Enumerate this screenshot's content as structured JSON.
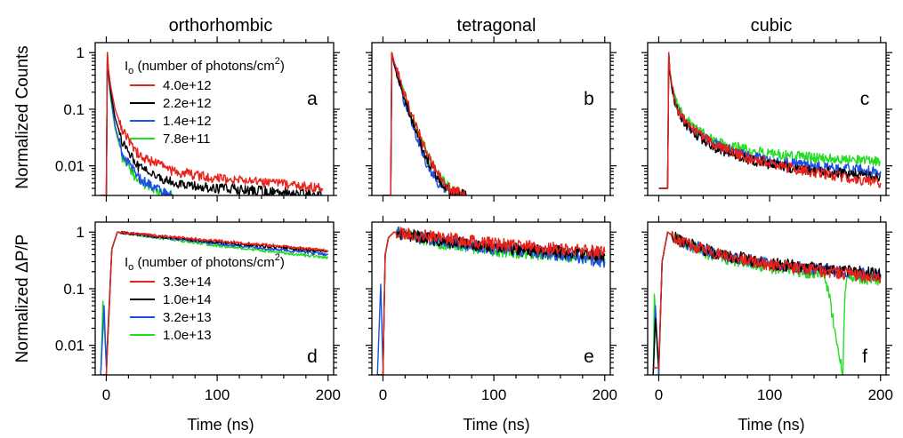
{
  "figure": {
    "column_titles": [
      "orthorhombic",
      "tetragonal",
      "cubic"
    ],
    "ylabel_top": "Normalized Counts",
    "ylabel_bottom": "Normalized  ΔP/P",
    "xlabel": "Time (ns)",
    "colors": {
      "red": "#e8211b",
      "black": "#000000",
      "blue": "#1f4fe0",
      "green": "#22dd22"
    }
  },
  "legends": {
    "top": {
      "title_prefix": "I",
      "title_sub": "o",
      "title_main": " (number of photons/cm",
      "title_sup": "2",
      "title_end": ")",
      "entries": [
        {
          "label": "4.0e+12",
          "color": "#e8211b"
        },
        {
          "label": "2.2e+12",
          "color": "#000000"
        },
        {
          "label": "1.4e+12",
          "color": "#1f4fe0"
        },
        {
          "label": "7.8e+11",
          "color": "#22dd22"
        }
      ]
    },
    "bottom": {
      "title_prefix": "I",
      "title_sub": "o",
      "title_main": " (number of photons/cm",
      "title_sup": "2",
      "title_end": ")",
      "entries": [
        {
          "label": "3.3e+14",
          "color": "#e8211b"
        },
        {
          "label": "1.0e+14",
          "color": "#000000"
        },
        {
          "label": "3.2e+13",
          "color": "#1f4fe0"
        },
        {
          "label": "1.0e+13",
          "color": "#22dd22"
        }
      ]
    }
  },
  "chart_data": [
    {
      "panel": "a",
      "type": "line",
      "yscale": "log",
      "ylim": [
        0.003,
        1.5
      ],
      "xlim": [
        -10,
        205
      ],
      "xticks": [
        0,
        100,
        200
      ],
      "yticks": [
        1,
        0.1,
        0.01
      ],
      "ytick_labels": [
        "1",
        "0.1",
        "0.01"
      ],
      "series": [
        {
          "name": "4.0e+12",
          "color": "#e8211b",
          "x": [
            -5,
            0,
            1,
            2,
            4,
            8,
            15,
            30,
            60,
            100,
            150,
            195
          ],
          "y": [
            0.003,
            0.003,
            1,
            0.5,
            0.25,
            0.1,
            0.04,
            0.015,
            0.008,
            0.006,
            0.005,
            0.004
          ]
        },
        {
          "name": "2.2e+12",
          "color": "#000000",
          "x": [
            -5,
            0,
            1,
            2,
            4,
            8,
            15,
            30,
            60,
            100,
            150,
            195
          ],
          "y": [
            0.003,
            0.003,
            1,
            0.45,
            0.2,
            0.07,
            0.025,
            0.009,
            0.005,
            0.004,
            0.0035,
            0.003
          ]
        },
        {
          "name": "1.4e+12",
          "color": "#1f4fe0",
          "x": [
            -5,
            0,
            1,
            2,
            4,
            8,
            15,
            30,
            45,
            60
          ],
          "y": [
            0.003,
            0.003,
            1,
            0.42,
            0.17,
            0.05,
            0.015,
            0.006,
            0.004,
            0.003
          ]
        },
        {
          "name": "7.8e+11",
          "color": "#22dd22",
          "x": [
            -5,
            0,
            1,
            2,
            4,
            8,
            15,
            30,
            45,
            60
          ],
          "y": [
            0.003,
            0.003,
            1,
            0.4,
            0.15,
            0.045,
            0.013,
            0.005,
            0.0035,
            0.003
          ]
        }
      ]
    },
    {
      "panel": "b",
      "type": "line",
      "yscale": "log",
      "ylim": [
        0.003,
        1.5
      ],
      "xlim": [
        -10,
        205
      ],
      "xticks": [
        0,
        100,
        200
      ],
      "yticks": [
        1,
        0.1,
        0.01
      ],
      "ytick_labels": [
        "",
        "",
        ""
      ],
      "series": [
        {
          "name": "4.0e+12",
          "color": "#e8211b",
          "x": [
            0,
            7,
            8,
            10,
            15,
            20,
            30,
            40,
            50,
            60,
            75
          ],
          "y": [
            0.003,
            0.003,
            1,
            0.7,
            0.35,
            0.17,
            0.05,
            0.016,
            0.007,
            0.004,
            0.003
          ]
        },
        {
          "name": "2.2e+12",
          "color": "#000000",
          "x": [
            0,
            7,
            8,
            10,
            15,
            20,
            30,
            40,
            50,
            60,
            75
          ],
          "y": [
            0.003,
            0.003,
            1,
            0.65,
            0.3,
            0.14,
            0.04,
            0.013,
            0.006,
            0.0035,
            0.003
          ]
        },
        {
          "name": "1.4e+12",
          "color": "#1f4fe0",
          "x": [
            0,
            7,
            8,
            10,
            15,
            20,
            30,
            40,
            50,
            60,
            70
          ],
          "y": [
            0.003,
            0.003,
            1,
            0.6,
            0.28,
            0.12,
            0.035,
            0.01,
            0.005,
            0.0035,
            0.003
          ]
        },
        {
          "name": "7.8e+11",
          "color": "#22dd22",
          "x": [
            0,
            7,
            8,
            10,
            15,
            20,
            30,
            40,
            50,
            60,
            75
          ],
          "y": [
            0.003,
            0.003,
            1,
            0.68,
            0.33,
            0.16,
            0.05,
            0.016,
            0.007,
            0.004,
            0.003
          ]
        }
      ]
    },
    {
      "panel": "c",
      "type": "line",
      "yscale": "log",
      "ylim": [
        0.003,
        1.5
      ],
      "xlim": [
        -10,
        205
      ],
      "xticks": [
        0,
        100,
        200
      ],
      "yticks": [
        1,
        0.1,
        0.01
      ],
      "ytick_labels": [
        "",
        "",
        ""
      ],
      "series": [
        {
          "name": "4.0e+12",
          "color": "#e8211b",
          "x": [
            0,
            8,
            9,
            10,
            12,
            15,
            20,
            30,
            50,
            80,
            120,
            160,
            200
          ],
          "y": [
            0.004,
            0.004,
            1,
            0.5,
            0.25,
            0.14,
            0.08,
            0.045,
            0.024,
            0.014,
            0.009,
            0.0065,
            0.005
          ]
        },
        {
          "name": "2.2e+12",
          "color": "#000000",
          "x": [
            0,
            8,
            9,
            10,
            12,
            15,
            20,
            30,
            50,
            80,
            120,
            160,
            200
          ],
          "y": [
            0.004,
            0.004,
            1,
            0.45,
            0.22,
            0.12,
            0.07,
            0.04,
            0.021,
            0.013,
            0.009,
            0.0075,
            0.0065
          ]
        },
        {
          "name": "1.4e+12",
          "color": "#1f4fe0",
          "x": [
            0,
            8,
            9,
            10,
            12,
            15,
            20,
            30,
            50,
            80,
            120,
            160,
            200
          ],
          "y": [
            0.004,
            0.004,
            1,
            0.45,
            0.23,
            0.13,
            0.075,
            0.043,
            0.024,
            0.015,
            0.011,
            0.009,
            0.008
          ]
        },
        {
          "name": "7.8e+11",
          "color": "#22dd22",
          "x": [
            0,
            8,
            9,
            10,
            12,
            15,
            20,
            30,
            50,
            80,
            120,
            160,
            200
          ],
          "y": [
            0.004,
            0.004,
            1,
            0.48,
            0.25,
            0.15,
            0.09,
            0.05,
            0.028,
            0.019,
            0.015,
            0.013,
            0.012
          ]
        }
      ]
    },
    {
      "panel": "d",
      "type": "line",
      "yscale": "log",
      "ylim": [
        0.003,
        1.5
      ],
      "xlim": [
        -10,
        205
      ],
      "xticks": [
        0,
        100,
        200
      ],
      "xtick_labels": [
        "0",
        "100",
        "200"
      ],
      "yticks": [
        1,
        0.1,
        0.01
      ],
      "ytick_labels": [
        "1",
        "0.1",
        "0.01"
      ],
      "series": [
        {
          "name": "3.3e+14",
          "color": "#e8211b",
          "x": [
            -5,
            0,
            5,
            10,
            50,
            100,
            150,
            200
          ],
          "y": [
            0.003,
            0.003,
            0.5,
            1,
            0.85,
            0.7,
            0.58,
            0.47
          ]
        },
        {
          "name": "1.0e+14",
          "color": "#000000",
          "x": [
            -5,
            0,
            5,
            10,
            50,
            100,
            150,
            200
          ],
          "y": [
            0.003,
            0.003,
            0.5,
            1,
            0.82,
            0.66,
            0.55,
            0.45
          ]
        },
        {
          "name": "3.2e+13",
          "color": "#1f4fe0",
          "x": [
            -5,
            -2,
            0,
            5,
            10,
            50,
            100,
            150,
            200
          ],
          "y": [
            0.003,
            0.05,
            0.004,
            0.5,
            1,
            0.8,
            0.62,
            0.5,
            0.4
          ]
        },
        {
          "name": "1.0e+13",
          "color": "#22dd22",
          "x": [
            -5,
            -3,
            0,
            5,
            10,
            50,
            100,
            150,
            200
          ],
          "y": [
            0.003,
            0.06,
            0.005,
            0.5,
            1,
            0.78,
            0.58,
            0.45,
            0.35
          ]
        }
      ]
    },
    {
      "panel": "e",
      "type": "line",
      "yscale": "log",
      "ylim": [
        0.003,
        1.5
      ],
      "xlim": [
        -10,
        205
      ],
      "xticks": [
        0,
        100,
        200
      ],
      "xtick_labels": [
        "0",
        "100",
        "200"
      ],
      "yticks": [
        1,
        0.1,
        0.01
      ],
      "ytick_labels": [
        "",
        "",
        ""
      ],
      "series": [
        {
          "name": "3.3e+14",
          "color": "#e8211b",
          "x": [
            -5,
            0,
            2,
            5,
            10,
            50,
            100,
            150,
            200
          ],
          "y": [
            0.003,
            0.003,
            0.4,
            0.8,
            1,
            0.8,
            0.62,
            0.52,
            0.44
          ]
        },
        {
          "name": "1.0e+14",
          "color": "#000000",
          "x": [
            -5,
            0,
            2,
            5,
            10,
            50,
            100,
            150,
            200
          ],
          "y": [
            0.003,
            0.003,
            0.4,
            0.8,
            1,
            0.72,
            0.55,
            0.46,
            0.38
          ]
        },
        {
          "name": "3.2e+13",
          "color": "#1f4fe0",
          "x": [
            -5,
            -2,
            0,
            2,
            5,
            10,
            50,
            100,
            150,
            200
          ],
          "y": [
            0.003,
            0.12,
            0.004,
            0.4,
            0.8,
            1,
            0.7,
            0.52,
            0.42,
            0.3
          ]
        },
        {
          "name": "1.0e+13",
          "color": "#22dd22",
          "x": [
            -5,
            0,
            2,
            5,
            10,
            50,
            100,
            150,
            200
          ],
          "y": [
            0.003,
            0.003,
            0.4,
            0.8,
            1,
            0.65,
            0.48,
            0.4,
            0.34
          ]
        }
      ]
    },
    {
      "panel": "f",
      "type": "line",
      "yscale": "log",
      "ylim": [
        0.003,
        1.5
      ],
      "xlim": [
        -10,
        205
      ],
      "xticks": [
        0,
        100,
        200
      ],
      "xtick_labels": [
        "0",
        "100",
        "200"
      ],
      "yticks": [
        1,
        0.1,
        0.01
      ],
      "ytick_labels": [
        "",
        "",
        ""
      ],
      "series": [
        {
          "name": "3.3e+14",
          "color": "#e8211b",
          "x": [
            -5,
            0,
            3,
            8,
            20,
            50,
            100,
            150,
            200
          ],
          "y": [
            0.004,
            0.004,
            0.3,
            1,
            0.7,
            0.42,
            0.26,
            0.2,
            0.16
          ]
        },
        {
          "name": "1.0e+14",
          "color": "#000000",
          "x": [
            -5,
            -3,
            0,
            3,
            8,
            20,
            50,
            100,
            150,
            200
          ],
          "y": [
            0.003,
            0.03,
            0.004,
            0.3,
            1,
            0.7,
            0.43,
            0.28,
            0.22,
            0.18
          ]
        },
        {
          "name": "3.2e+13",
          "color": "#1f4fe0",
          "x": [
            -5,
            -3,
            0,
            3,
            8,
            20,
            50,
            100,
            150,
            200
          ],
          "y": [
            0.003,
            0.05,
            0.003,
            0.3,
            1,
            0.68,
            0.42,
            0.27,
            0.21,
            0.17
          ]
        },
        {
          "name": "1.0e+13",
          "color": "#22dd22",
          "x": [
            -5,
            -4,
            0,
            3,
            8,
            20,
            50,
            100,
            150,
            166,
            168,
            170,
            200
          ],
          "y": [
            0.003,
            0.08,
            0.003,
            0.3,
            1,
            0.65,
            0.38,
            0.24,
            0.18,
            0.003,
            0.1,
            0.17,
            0.14
          ]
        }
      ]
    }
  ]
}
